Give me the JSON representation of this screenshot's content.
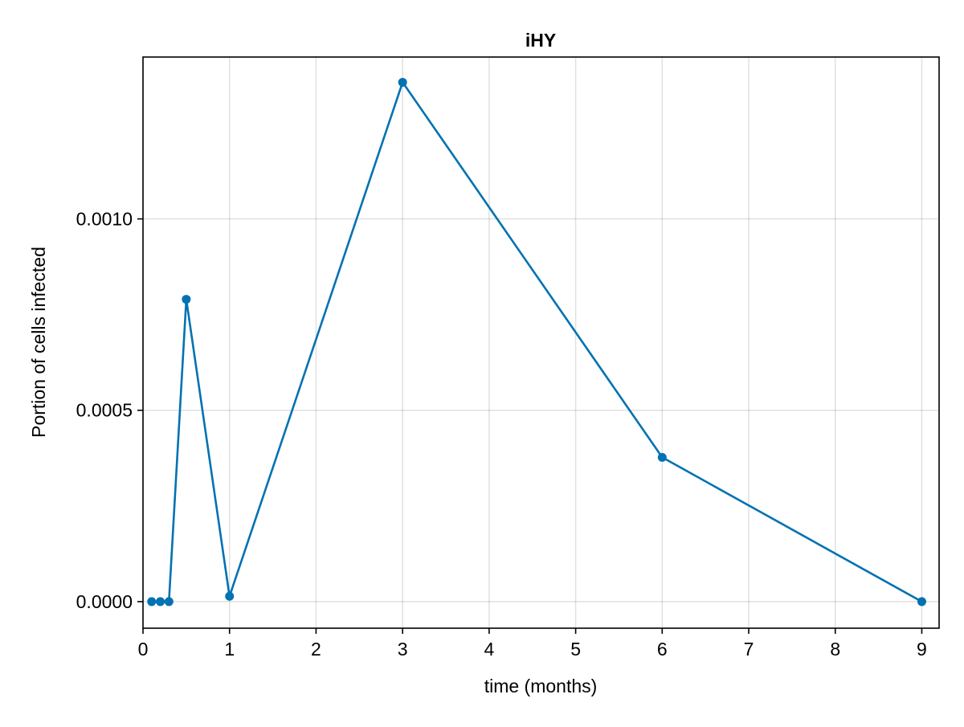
{
  "chart_data": {
    "type": "line",
    "title": "iHY",
    "xlabel": "time (months)",
    "ylabel": "Portion of cells infected",
    "xlim": [
      0,
      9.2
    ],
    "ylim": [
      -6.94e-05,
      0.001423
    ],
    "xticks": [
      0,
      1,
      2,
      3,
      4,
      5,
      6,
      7,
      8,
      9
    ],
    "xtick_labels": [
      "0",
      "1",
      "2",
      "3",
      "4",
      "5",
      "6",
      "7",
      "8",
      "9"
    ],
    "yticks": [
      0,
      0.0005,
      0.001
    ],
    "ytick_labels": [
      "0.0000",
      "0.0005",
      "0.0010"
    ],
    "grid": true,
    "series": [
      {
        "color": "#0072b2",
        "x": [
          0.1,
          0.2,
          0.3,
          0.5,
          1,
          3,
          6,
          9
        ],
        "y": [
          0,
          0,
          0,
          0.00079,
          1.4e-05,
          0.001357,
          0.000377,
          0
        ]
      }
    ]
  }
}
